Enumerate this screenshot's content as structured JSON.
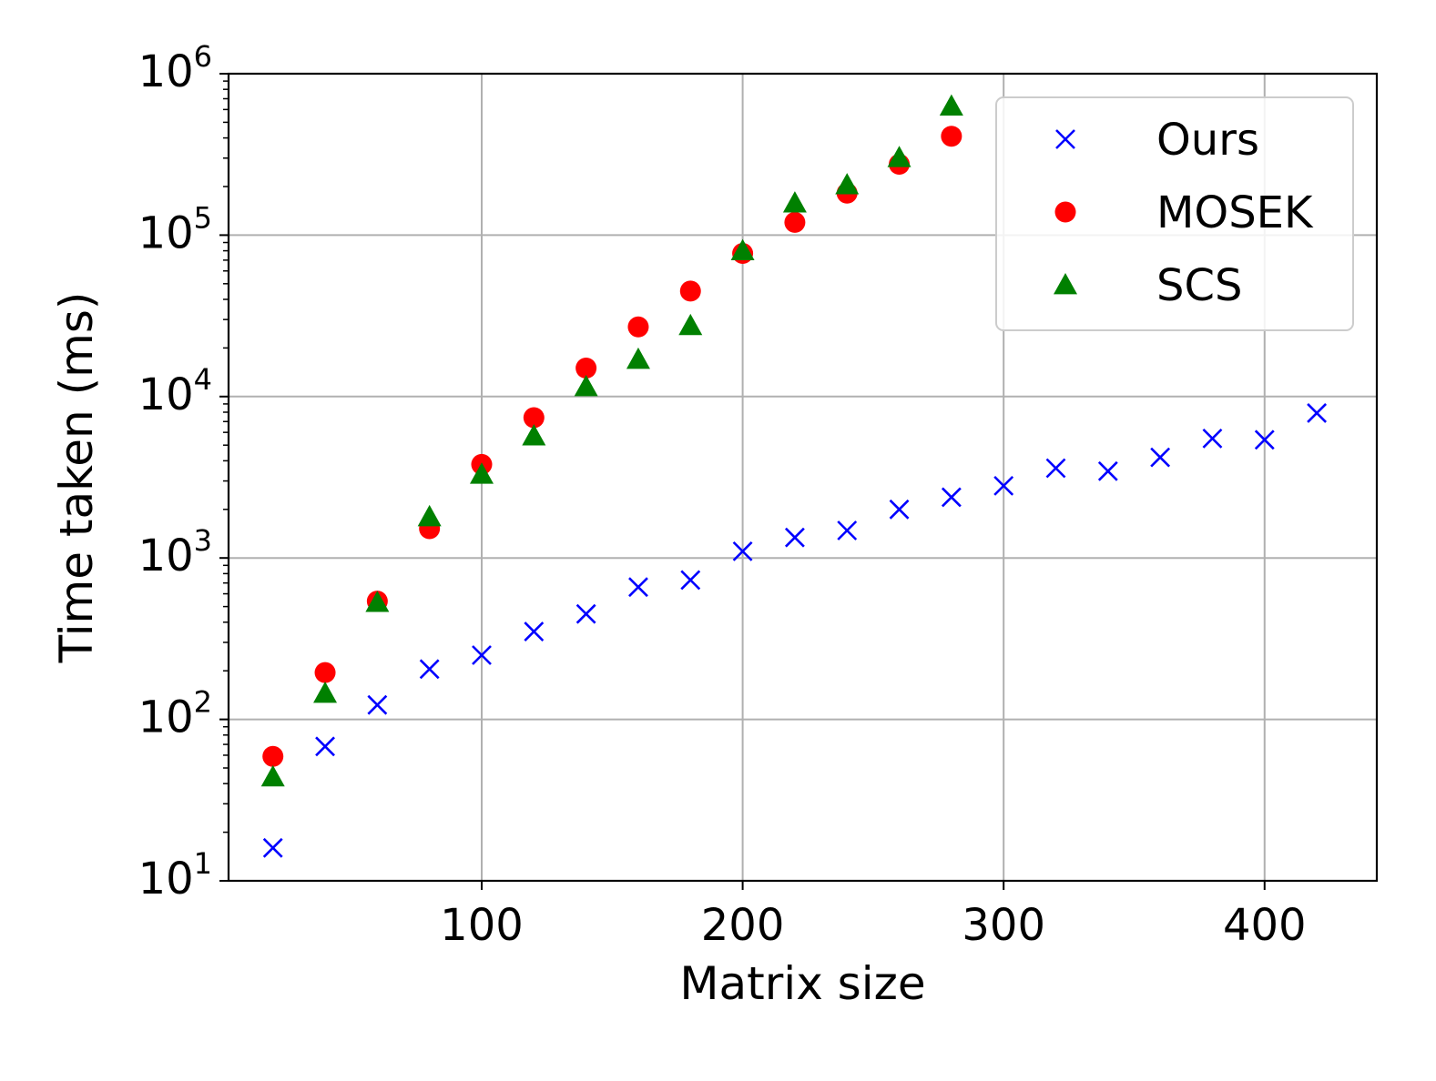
{
  "chart_data": {
    "type": "scatter",
    "title": "",
    "xlabel": "Matrix size",
    "ylabel": "Time taken (ms)",
    "xscale": "linear",
    "yscale": "log",
    "xlim": [
      3,
      443
    ],
    "ylim": [
      10,
      1000000
    ],
    "grid": true,
    "legend_position": "top-right",
    "x_ticks": [
      100,
      200,
      300,
      400
    ],
    "x_tick_labels": [
      "100",
      "200",
      "300",
      "400"
    ],
    "y_ticks": [
      10,
      100,
      1000,
      10000,
      100000,
      1000000
    ],
    "y_tick_labels": [
      {
        "base": "10",
        "exp": "1"
      },
      {
        "base": "10",
        "exp": "2"
      },
      {
        "base": "10",
        "exp": "3"
      },
      {
        "base": "10",
        "exp": "4"
      },
      {
        "base": "10",
        "exp": "5"
      },
      {
        "base": "10",
        "exp": "6"
      }
    ],
    "series": [
      {
        "name": "Ours",
        "marker": "x",
        "color": "#0000ff",
        "x": [
          20,
          40,
          60,
          80,
          100,
          120,
          140,
          160,
          180,
          200,
          220,
          240,
          260,
          280,
          300,
          320,
          340,
          360,
          380,
          400,
          420
        ],
        "y": [
          16,
          68,
          123,
          205,
          250,
          350,
          450,
          660,
          730,
          1100,
          1340,
          1480,
          2000,
          2380,
          2800,
          3600,
          3450,
          4200,
          5500,
          5400,
          7900
        ]
      },
      {
        "name": "MOSEK",
        "marker": "circle",
        "color": "#ff0000",
        "x": [
          20,
          40,
          60,
          80,
          100,
          120,
          140,
          160,
          180,
          200,
          220,
          240,
          260,
          280
        ],
        "y": [
          59,
          195,
          540,
          1520,
          3800,
          7400,
          15000,
          27000,
          45000,
          77000,
          120000,
          182000,
          275000,
          410000
        ]
      },
      {
        "name": "SCS",
        "marker": "triangle",
        "color": "#008000",
        "x": [
          20,
          40,
          60,
          80,
          100,
          120,
          140,
          160,
          180,
          200,
          220,
          240,
          260,
          280
        ],
        "y": [
          44,
          145,
          530,
          1800,
          3300,
          5700,
          11500,
          17000,
          27500,
          80000,
          158000,
          205000,
          302000,
          630000
        ]
      }
    ]
  }
}
